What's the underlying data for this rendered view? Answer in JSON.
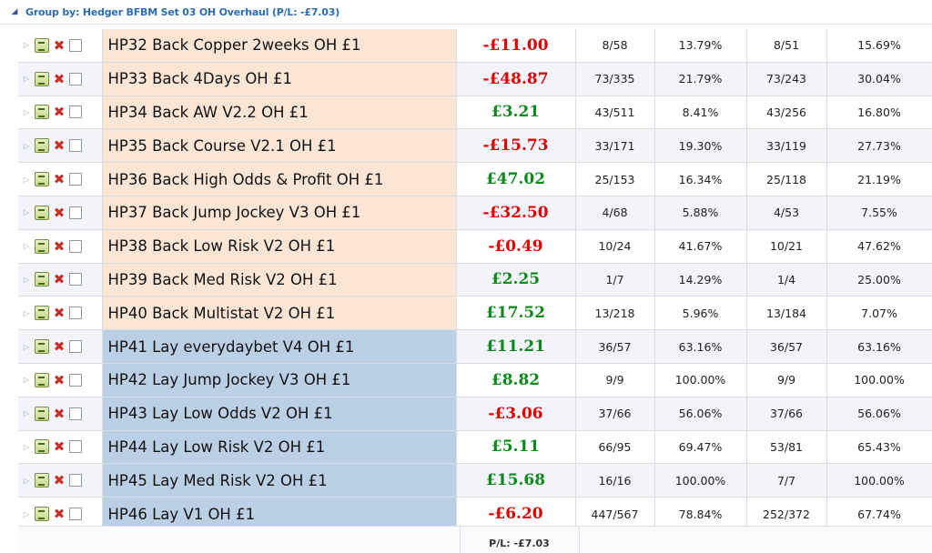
{
  "group": {
    "toggle_icon": "collapse-triangle-icon",
    "title": "Group by: Hedger BFBM Set 03 OH Overhaul (P/L: -£7.03)"
  },
  "rows": [
    {
      "name": "HP32 Back Copper 2weeks OH £1",
      "type": "back",
      "pl": "-£11.00",
      "pl_sign": "neg",
      "c1": "8/58",
      "c2": "13.79%",
      "c3": "8/51",
      "c4": "15.69%"
    },
    {
      "name": "HP33 Back 4Days OH £1",
      "type": "back",
      "pl": "-£48.87",
      "pl_sign": "neg",
      "c1": "73/335",
      "c2": "21.79%",
      "c3": "73/243",
      "c4": "30.04%"
    },
    {
      "name": "HP34 Back AW V2.2 OH £1",
      "type": "back",
      "pl": "£3.21",
      "pl_sign": "pos",
      "c1": "43/511",
      "c2": "8.41%",
      "c3": "43/256",
      "c4": "16.80%"
    },
    {
      "name": "HP35 Back Course V2.1 OH £1",
      "type": "back",
      "pl": "-£15.73",
      "pl_sign": "neg",
      "c1": "33/171",
      "c2": "19.30%",
      "c3": "33/119",
      "c4": "27.73%"
    },
    {
      "name": "HP36 Back High Odds & Profit OH £1",
      "type": "back",
      "pl": "£47.02",
      "pl_sign": "pos",
      "c1": "25/153",
      "c2": "16.34%",
      "c3": "25/118",
      "c4": "21.19%"
    },
    {
      "name": "HP37 Back Jump Jockey V3 OH £1",
      "type": "back",
      "pl": "-£32.50",
      "pl_sign": "neg",
      "c1": "4/68",
      "c2": "5.88%",
      "c3": "4/53",
      "c4": "7.55%"
    },
    {
      "name": "HP38 Back Low Risk V2 OH £1",
      "type": "back",
      "pl": "-£0.49",
      "pl_sign": "neg",
      "c1": "10/24",
      "c2": "41.67%",
      "c3": "10/21",
      "c4": "47.62%"
    },
    {
      "name": "HP39 Back Med Risk V2 OH £1",
      "type": "back",
      "pl": "£2.25",
      "pl_sign": "pos",
      "c1": "1/7",
      "c2": "14.29%",
      "c3": "1/4",
      "c4": "25.00%"
    },
    {
      "name": "HP40 Back Multistat V2 OH £1",
      "type": "back",
      "pl": "£17.52",
      "pl_sign": "pos",
      "c1": "13/218",
      "c2": "5.96%",
      "c3": "13/184",
      "c4": "7.07%"
    },
    {
      "name": "HP41 Lay everydaybet V4 OH £1",
      "type": "lay",
      "pl": "£11.21",
      "pl_sign": "pos",
      "c1": "36/57",
      "c2": "63.16%",
      "c3": "36/57",
      "c4": "63.16%"
    },
    {
      "name": "HP42 Lay Jump Jockey V3 OH £1",
      "type": "lay",
      "pl": "£8.82",
      "pl_sign": "pos",
      "c1": "9/9",
      "c2": "100.00%",
      "c3": "9/9",
      "c4": "100.00%"
    },
    {
      "name": "HP43 Lay Low Odds V2 OH £1",
      "type": "lay",
      "pl": "-£3.06",
      "pl_sign": "neg",
      "c1": "37/66",
      "c2": "56.06%",
      "c3": "37/66",
      "c4": "56.06%"
    },
    {
      "name": "HP44 Lay Low Risk V2 OH £1",
      "type": "lay",
      "pl": "£5.11",
      "pl_sign": "pos",
      "c1": "66/95",
      "c2": "69.47%",
      "c3": "53/81",
      "c4": "65.43%"
    },
    {
      "name": "HP45 Lay Med Risk V2 OH £1",
      "type": "lay",
      "pl": "£15.68",
      "pl_sign": "pos",
      "c1": "16/16",
      "c2": "100.00%",
      "c3": "7/7",
      "c4": "100.00%"
    },
    {
      "name": "HP46 Lay V1 OH £1",
      "type": "lay",
      "pl": "-£6.20",
      "pl_sign": "neg",
      "c1": "447/567",
      "c2": "78.84%",
      "c3": "252/372",
      "c4": "67.74%"
    }
  ],
  "footer": {
    "total": "P/L: -£7.03"
  },
  "colors": {
    "back_row": "#fbe6d6",
    "lay_row": "#bcd0e5",
    "negative": "#e00000",
    "positive": "#0a8a1a",
    "group_title": "#2a6cb5"
  },
  "icons": {
    "expander": "expand-arrow-icon",
    "edit": "edit-icon",
    "delete": "delete-x-icon",
    "select": "checkbox"
  }
}
